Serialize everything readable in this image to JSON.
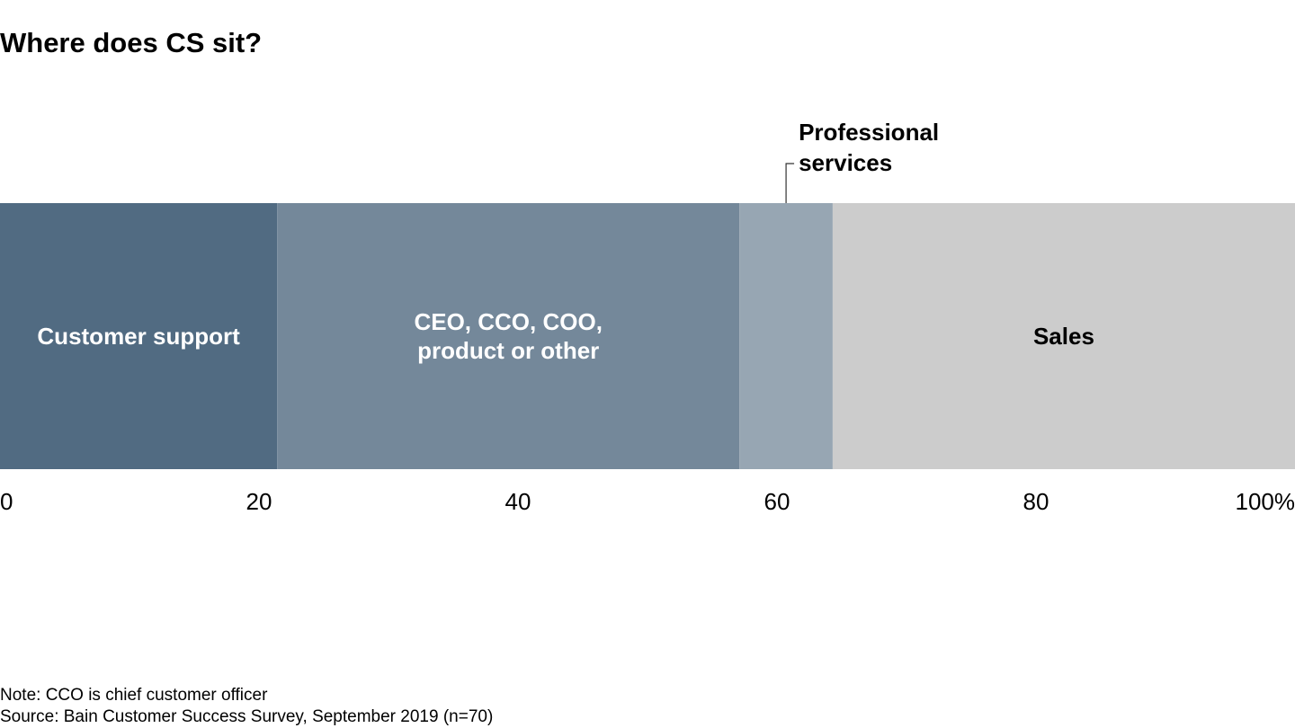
{
  "title": "Where does CS sit?",
  "chart_data": {
    "type": "bar",
    "orientation": "horizontal-stacked-100",
    "xlim": [
      0,
      100
    ],
    "x_ticks": [
      "0",
      "20",
      "40",
      "60",
      "80",
      "100%"
    ],
    "x_tick_values": [
      0,
      20,
      40,
      60,
      80,
      100
    ],
    "series": [
      {
        "name": "Customer support",
        "label_lines": [
          "Customer support"
        ],
        "value": 21.4,
        "color": "#516b82",
        "label_color": "#ffffff",
        "label_position": "inside"
      },
      {
        "name": "CEO, CCO, COO, product or other",
        "label_lines": [
          "CEO, CCO, COO,",
          "product or other"
        ],
        "value": 35.7,
        "color": "#74889a",
        "label_color": "#ffffff",
        "label_position": "inside"
      },
      {
        "name": "Professional services",
        "label_lines": [
          "Professional",
          "services"
        ],
        "value": 7.2,
        "color": "#97a6b3",
        "label_color": "#000000",
        "label_position": "callout-above"
      },
      {
        "name": "Sales",
        "label_lines": [
          "Sales"
        ],
        "value": 35.7,
        "color": "#cccccc",
        "label_color": "#000000",
        "label_position": "inside"
      }
    ]
  },
  "footnotes": {
    "note": "Note: CCO is chief customer officer",
    "source": "Source: Bain Customer Success Survey, September 2019 (n=70)"
  }
}
